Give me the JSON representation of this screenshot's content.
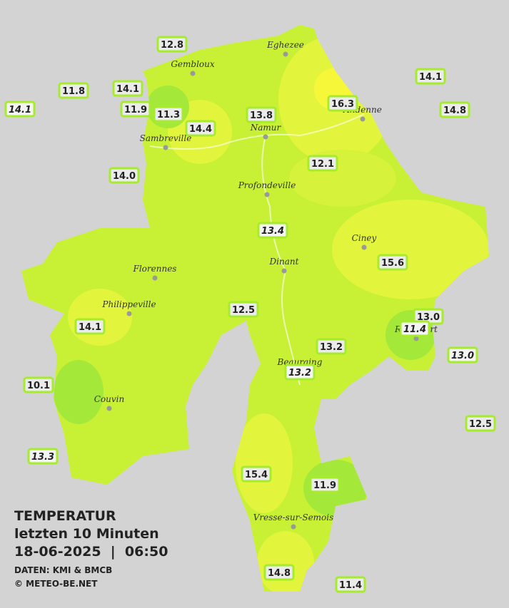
{
  "legend": {
    "title": "TEMPERATUR",
    "subtitle": "letzten 10 Minuten",
    "datetime": "18-06-2025  |  06:50",
    "source": "DATEN: KMI & BMCB",
    "credit": "© METEO-BE.NET"
  },
  "cities": [
    {
      "name": "Eghezee"
    },
    {
      "name": "Gembloux"
    },
    {
      "name": "Andenne"
    },
    {
      "name": "Namur"
    },
    {
      "name": "Sambreville"
    },
    {
      "name": "Profondeville"
    },
    {
      "name": "Ciney"
    },
    {
      "name": "Dinant"
    },
    {
      "name": "Florennes"
    },
    {
      "name": "Philippeville"
    },
    {
      "name": "Rochefort"
    },
    {
      "name": "Beauraing"
    },
    {
      "name": "Couvin"
    },
    {
      "name": "Vresse-sur-Semois"
    }
  ],
  "stations": [
    {
      "value": "12.8"
    },
    {
      "value": "14.1"
    },
    {
      "value": "11.8"
    },
    {
      "value": "14.1"
    },
    {
      "value": "11.9"
    },
    {
      "value": "11.3"
    },
    {
      "value": "14.4"
    },
    {
      "value": "13.8"
    },
    {
      "value": "16.3"
    },
    {
      "value": "14.1"
    },
    {
      "value": "14.8"
    },
    {
      "value": "14.0"
    },
    {
      "value": "12.1"
    },
    {
      "value": "13.4"
    },
    {
      "value": "15.6"
    },
    {
      "value": "12.5"
    },
    {
      "value": "14.1"
    },
    {
      "value": "13.0"
    },
    {
      "value": "11.4"
    },
    {
      "value": "13.2"
    },
    {
      "value": "13.2"
    },
    {
      "value": "13.0"
    },
    {
      "value": "10.1"
    },
    {
      "value": "12.5"
    },
    {
      "value": "13.3"
    },
    {
      "value": "15.4"
    },
    {
      "value": "11.9"
    },
    {
      "value": "14.8"
    },
    {
      "value": "11.4"
    }
  ]
}
